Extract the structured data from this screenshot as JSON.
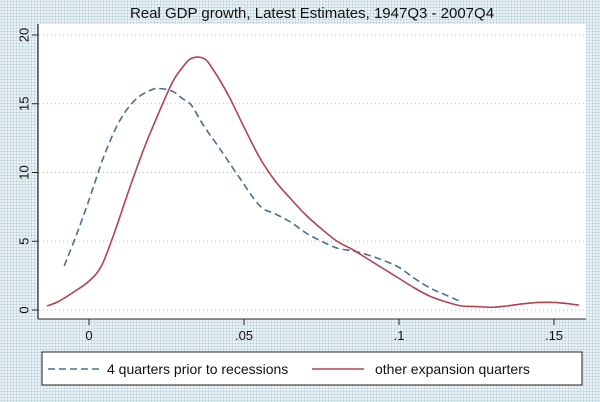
{
  "chart_data": {
    "type": "line",
    "title": "Real GDP growth, Latest Estimates, 1947Q3 - 2007Q4",
    "xlabel": "",
    "ylabel": "",
    "xlim": [
      -0.016,
      0.16
    ],
    "ylim": [
      0,
      20
    ],
    "x_ticks": [
      0,
      0.05,
      0.1,
      0.15
    ],
    "x_tick_labels": [
      "0",
      ".05",
      ".1",
      ".15"
    ],
    "y_ticks": [
      0,
      5,
      10,
      15,
      20
    ],
    "y_tick_labels": [
      "0",
      "5",
      "10",
      "15",
      "20"
    ],
    "grid": "horizontal dotted",
    "legend_position": "bottom",
    "series": [
      {
        "name": "4 quarters prior to recessions",
        "style": "dashed",
        "color": "#4a6e98",
        "x": [
          -0.008,
          -0.004,
          0,
          0.005,
          0.01,
          0.015,
          0.02,
          0.023,
          0.027,
          0.03,
          0.033,
          0.037,
          0.042,
          0.048,
          0.055,
          0.06,
          0.065,
          0.07,
          0.075,
          0.08,
          0.085,
          0.09,
          0.095,
          0.1,
          0.105,
          0.11,
          0.115,
          0.12
        ],
        "y": [
          3.2,
          5.5,
          8.0,
          11.3,
          13.8,
          15.3,
          16.0,
          16.1,
          15.9,
          15.4,
          14.9,
          13.4,
          11.8,
          9.8,
          7.6,
          7.0,
          6.4,
          5.6,
          5.0,
          4.5,
          4.3,
          4.0,
          3.6,
          3.1,
          2.3,
          1.6,
          1.1,
          0.6
        ]
      },
      {
        "name": "other expansion quarters",
        "style": "solid",
        "color": "#b4424f",
        "x": [
          -0.0135,
          -0.01,
          -0.005,
          0,
          0.004,
          0.008,
          0.013,
          0.018,
          0.023,
          0.027,
          0.03,
          0.033,
          0.037,
          0.04,
          0.045,
          0.05,
          0.055,
          0.06,
          0.065,
          0.07,
          0.075,
          0.08,
          0.085,
          0.09,
          0.095,
          0.1,
          0.105,
          0.11,
          0.115,
          0.12,
          0.125,
          0.13,
          0.135,
          0.14,
          0.145,
          0.15,
          0.155,
          0.158
        ],
        "y": [
          0.3,
          0.6,
          1.3,
          2.1,
          3.2,
          5.5,
          8.8,
          11.9,
          14.6,
          16.6,
          17.6,
          18.3,
          18.3,
          17.5,
          15.6,
          13.3,
          11.1,
          9.4,
          8.1,
          6.9,
          5.9,
          5.0,
          4.4,
          3.7,
          3.0,
          2.3,
          1.6,
          1.0,
          0.6,
          0.3,
          0.25,
          0.2,
          0.3,
          0.45,
          0.55,
          0.55,
          0.45,
          0.35
        ]
      }
    ]
  }
}
